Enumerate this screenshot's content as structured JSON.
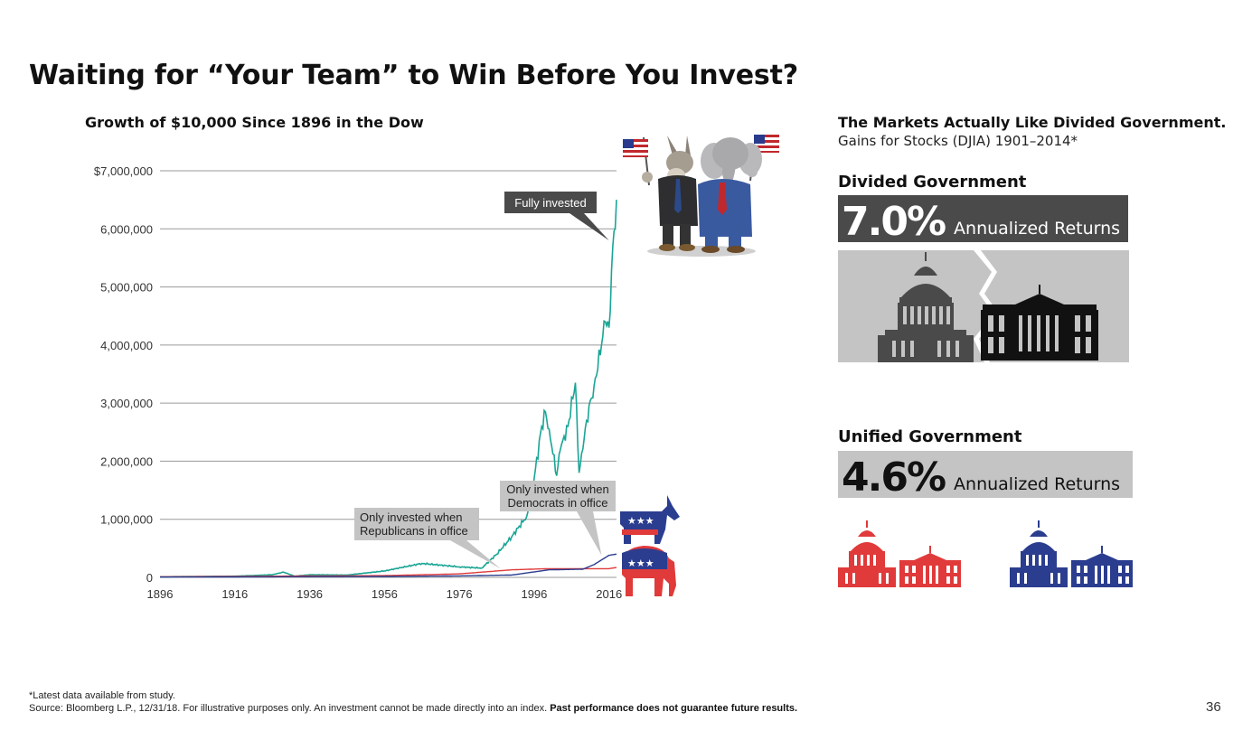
{
  "title": "Waiting for “Your Team” to Win Before You Invest?",
  "chart_data": {
    "type": "line",
    "title": "Growth of $10,000 Since 1896 in the Dow",
    "xlabel": "",
    "ylabel": "",
    "xlim": [
      1896,
      2018
    ],
    "ylim": [
      0,
      7000000
    ],
    "x_ticks": [
      "1896",
      "1916",
      "1936",
      "1956",
      "1976",
      "1996",
      "2016"
    ],
    "y_ticks": [
      "$7,000,000",
      "6,000,000",
      "5,000,000",
      "4,000,000",
      "3,000,000",
      "2,000,000",
      "1,000,000",
      "0"
    ],
    "grid": "horizontal",
    "series": [
      {
        "color": "#1aa595",
        "x": [
          1896,
          1906,
          1916,
          1926,
          1929,
          1932,
          1936,
          1946,
          1956,
          1966,
          1976,
          1982,
          1986,
          1990,
          1994,
          1996,
          1998,
          1999,
          2000,
          2002,
          2003,
          2005,
          2007,
          2008,
          2009,
          2010,
          2012,
          2014,
          2015,
          2016,
          2017,
          2018
        ],
        "y": [
          10000,
          15000,
          20000,
          45000,
          90000,
          20000,
          45000,
          40000,
          110000,
          240000,
          180000,
          160000,
          400000,
          700000,
          1050000,
          1700000,
          2600000,
          2850000,
          2550000,
          1750000,
          2200000,
          2600000,
          3350000,
          1800000,
          2200000,
          2700000,
          3300000,
          4000000,
          4400000,
          4300000,
          5700000,
          6500000
        ]
      },
      {
        "color": "#e03a3a",
        "x": [
          1896,
          1956,
          1976,
          1990,
          2000,
          2009,
          2016,
          2018
        ],
        "y": [
          10000,
          30000,
          60000,
          130000,
          150000,
          150000,
          150000,
          170000
        ]
      },
      {
        "color": "#2b3d8f",
        "x": [
          1896,
          1956,
          1976,
          1990,
          2000,
          2009,
          2012,
          2016,
          2018
        ],
        "y": [
          5000,
          15000,
          25000,
          40000,
          130000,
          140000,
          220000,
          380000,
          400000
        ]
      }
    ],
    "annotations": [
      {
        "text": "Fully invested",
        "x": 2016,
        "y": 5800000
      },
      {
        "text_line1": "Only invested when",
        "text_line2": "Democrats in office",
        "x": 2014,
        "y": 380000
      },
      {
        "text_line1": "Only invested when",
        "text_line2": "Republicans in office",
        "x": 1987,
        "y": 150000
      }
    ]
  },
  "right_panel": {
    "title": "The Markets Actually Like Divided Government.",
    "subtitle": "Gains for Stocks (DJIA) 1901–2014*",
    "divided": {
      "heading": "Divided Government",
      "value": "7.0%",
      "label": "Annualized Returns"
    },
    "unified": {
      "heading": "Unified Government",
      "value": "4.6%",
      "label": "Annualized Returns"
    }
  },
  "colors": {
    "green": "#1aa595",
    "red": "#e03a3a",
    "blue": "#2b3d8f",
    "dark_gray": "#4a4a4a",
    "light_gray": "#c4c4c4"
  },
  "icons": [
    "donkey-elephant-cartoon-icon",
    "democrat-donkey-icon",
    "republican-elephant-icon",
    "capitol-icon",
    "white-house-icon"
  ],
  "footnote": {
    "line1": "*Latest data available from study.",
    "line2": "Source: Bloomberg L.P., 12/31/18. For illustrative purposes only. An investment cannot be made directly into an index.",
    "line2_bold": "Past performance does not guarantee future results."
  },
  "page_number": "36"
}
